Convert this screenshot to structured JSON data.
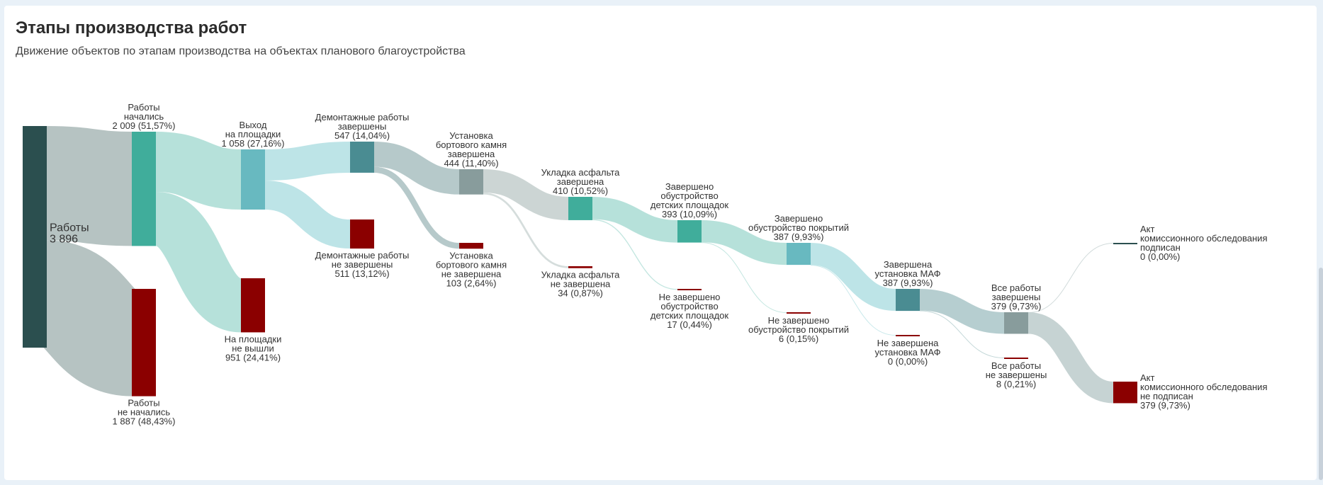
{
  "header": {
    "title": "Этапы производства работ",
    "subtitle": "Движение объектов по этапам производства на объектах планового благоустройства"
  },
  "chart_data": {
    "type": "sankey",
    "title": "Этапы производства работ",
    "subtitle": "Движение объектов по этапам производства на объектах планового благоустройства",
    "nodes": [
      {
        "id": "start",
        "label": [
          "Работы",
          "3 896"
        ],
        "value": 3896,
        "color": "#2b4f4f"
      },
      {
        "id": "started",
        "label": [
          "Работы",
          "начались",
          "2 009 (51,57%)"
        ],
        "value": 2009,
        "color": "#40ad9b"
      },
      {
        "id": "not_started",
        "label": [
          "Работы",
          "не начались",
          "1 887 (48,43%)"
        ],
        "value": 1887,
        "color": "#8b0000"
      },
      {
        "id": "on_site",
        "label": [
          "Выход",
          "на площадки",
          "1 058 (27,16%)"
        ],
        "value": 1058,
        "color": "#68b9c0"
      },
      {
        "id": "not_on_site",
        "label": [
          "На площадки",
          "не вышли",
          "951 (24,41%)"
        ],
        "value": 951,
        "color": "#8b0000"
      },
      {
        "id": "demount_done",
        "label": [
          "Демонтажные работы",
          "завершены",
          "547 (14,04%)"
        ],
        "value": 547,
        "color": "#4a8c92"
      },
      {
        "id": "demount_not",
        "label": [
          "Демонтажные работы",
          "не завершены",
          "511 (13,12%)"
        ],
        "value": 511,
        "color": "#8b0000"
      },
      {
        "id": "curb_done",
        "label": [
          "Установка",
          "бортового камня",
          "завершена",
          "444 (11,40%)"
        ],
        "value": 444,
        "color": "#889c9c"
      },
      {
        "id": "curb_not",
        "label": [
          "Установка",
          "бортового камня",
          "не завершена",
          "103 (2,64%)"
        ],
        "value": 103,
        "color": "#8b0000"
      },
      {
        "id": "asphalt_done",
        "label": [
          "Укладка асфальта",
          "завершена",
          "410 (10,52%)"
        ],
        "value": 410,
        "color": "#40ad9b"
      },
      {
        "id": "asphalt_not",
        "label": [
          "Укладка асфальта",
          "не завершена",
          "34 (0,87%)"
        ],
        "value": 34,
        "color": "#8b0000"
      },
      {
        "id": "play_done",
        "label": [
          "Завершено",
          "обустройство",
          "детских площадок",
          "393 (10,09%)"
        ],
        "value": 393,
        "color": "#40ad9b"
      },
      {
        "id": "play_not",
        "label": [
          "Не завершено",
          "обустройство",
          "детских площадок",
          "17 (0,44%)"
        ],
        "value": 17,
        "color": "#8b0000"
      },
      {
        "id": "cover_done",
        "label": [
          "Завершено",
          "обустройство покрытий",
          "387 (9,93%)"
        ],
        "value": 387,
        "color": "#68b9c0"
      },
      {
        "id": "cover_not",
        "label": [
          "Не завершено",
          "обустройство покрытий",
          "6 (0,15%)"
        ],
        "value": 6,
        "color": "#8b0000"
      },
      {
        "id": "maf_done",
        "label": [
          "Завершена",
          "установка МАФ",
          "387 (9,93%)"
        ],
        "value": 387,
        "color": "#4a8c92"
      },
      {
        "id": "maf_not",
        "label": [
          "Не завершена",
          "установка МАФ",
          "0 (0,00%)"
        ],
        "value": 0,
        "color": "#8b0000"
      },
      {
        "id": "all_done",
        "label": [
          "Все работы",
          "завершены",
          "379 (9,73%)"
        ],
        "value": 379,
        "color": "#889c9c"
      },
      {
        "id": "all_not",
        "label": [
          "Все работы",
          "не завершены",
          "8 (0,21%)"
        ],
        "value": 8,
        "color": "#8b0000"
      },
      {
        "id": "act_signed",
        "label": [
          "Акт",
          "комиссионного обследования",
          "подписан",
          "0 (0,00%)"
        ],
        "value": 0,
        "color": "#2b4f4f"
      },
      {
        "id": "act_not",
        "label": [
          "Акт",
          "комиссионного обследования",
          "не подписан",
          "379 (9,73%)"
        ],
        "value": 379,
        "color": "#8b0000"
      }
    ],
    "links": [
      {
        "source": "start",
        "target": "started",
        "value": 2009
      },
      {
        "source": "start",
        "target": "not_started",
        "value": 1887
      },
      {
        "source": "started",
        "target": "on_site",
        "value": 1058
      },
      {
        "source": "started",
        "target": "not_on_site",
        "value": 951
      },
      {
        "source": "on_site",
        "target": "demount_done",
        "value": 547
      },
      {
        "source": "on_site",
        "target": "demount_not",
        "value": 511
      },
      {
        "source": "demount_done",
        "target": "curb_done",
        "value": 444
      },
      {
        "source": "demount_done",
        "target": "curb_not",
        "value": 103
      },
      {
        "source": "curb_done",
        "target": "asphalt_done",
        "value": 410
      },
      {
        "source": "curb_done",
        "target": "asphalt_not",
        "value": 34
      },
      {
        "source": "asphalt_done",
        "target": "play_done",
        "value": 393
      },
      {
        "source": "asphalt_done",
        "target": "play_not",
        "value": 17
      },
      {
        "source": "play_done",
        "target": "cover_done",
        "value": 387
      },
      {
        "source": "play_done",
        "target": "cover_not",
        "value": 6
      },
      {
        "source": "cover_done",
        "target": "maf_done",
        "value": 387
      },
      {
        "source": "cover_done",
        "target": "maf_not",
        "value": 0
      },
      {
        "source": "maf_done",
        "target": "all_done",
        "value": 379
      },
      {
        "source": "maf_done",
        "target": "all_not",
        "value": 8
      },
      {
        "source": "all_done",
        "target": "act_signed",
        "value": 0
      },
      {
        "source": "all_done",
        "target": "act_not",
        "value": 379
      }
    ]
  }
}
